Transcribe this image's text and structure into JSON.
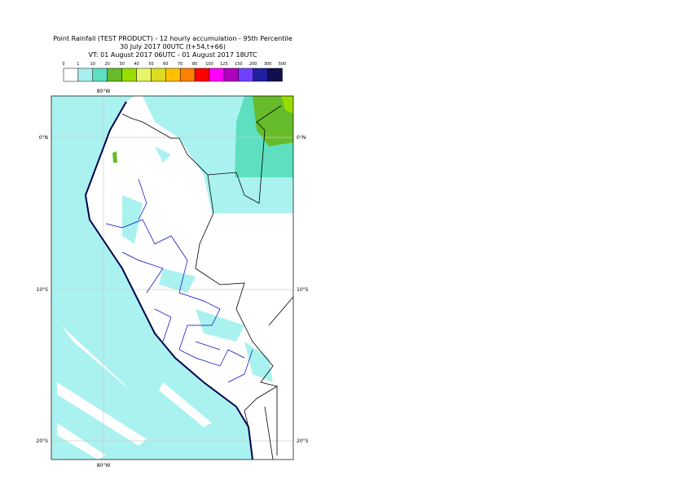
{
  "header": {
    "lines": [
      "Point Rainfall (TEST PRODUCT) - 12 hourly accumulation - 95th Percentile",
      "30 July 2017 00UTC (t+54,t+66)",
      "VT: 01 August 2017 06UTC - 01 August 2017 18UTC"
    ]
  },
  "legend": {
    "levels": [
      0,
      1,
      10,
      20,
      30,
      40,
      50,
      60,
      70,
      80,
      100,
      125,
      150,
      200,
      300,
      500
    ],
    "colors": [
      "#ffffff",
      "#a8f0ee",
      "#5ee0c0",
      "#66bb2a",
      "#99dd00",
      "#e6f56a",
      "#dcdc20",
      "#ffc000",
      "#ff8000",
      "#ff0000",
      "#ff00ff",
      "#b000c0",
      "#7040ff",
      "#2020a0",
      "#101050"
    ]
  },
  "map": {
    "lon_labels": [
      "80°W"
    ],
    "lat_labels": [
      "0°N",
      "10°S",
      "20°S"
    ]
  }
}
